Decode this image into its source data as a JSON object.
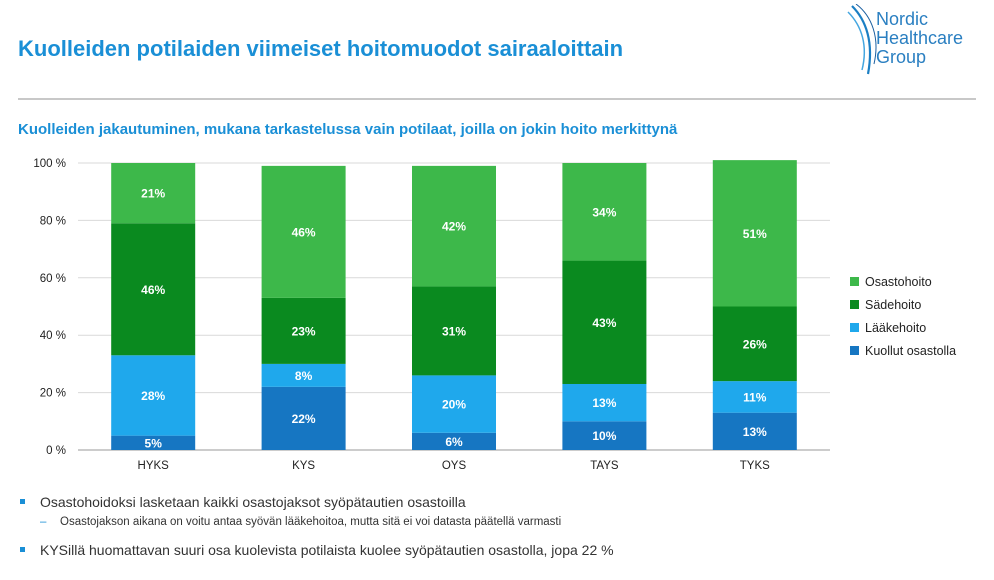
{
  "header": {
    "title": "Kuolleiden potilaiden viimeiset hoitomuodot sairaaloittain",
    "subtitle": "Kuolleiden jakautuminen, mukana tarkastelussa vain potilaat, joilla on jokin hoito merkittynä"
  },
  "logo": {
    "line1": "Nordic",
    "line2": "Healthcare",
    "line3": "Group",
    "color": "#2a7fc1"
  },
  "chart_data": {
    "type": "bar",
    "stacked": true,
    "categories": [
      "HYKS",
      "KYS",
      "OYS",
      "TAYS",
      "TYKS"
    ],
    "series": [
      {
        "name": "Kuollut osastolla",
        "values": [
          5,
          22,
          6,
          10,
          13
        ],
        "labels": [
          "5%",
          "22%",
          "6%",
          "10%",
          "13%"
        ],
        "color": "#1676c2"
      },
      {
        "name": "Lääkehoito",
        "values": [
          28,
          8,
          20,
          13,
          11
        ],
        "labels": [
          "28%",
          "8%",
          "20%",
          "13%",
          "11%"
        ],
        "color": "#1fa8ec"
      },
      {
        "name": "Sädehoito",
        "values": [
          46,
          23,
          31,
          43,
          26
        ],
        "labels": [
          "46%",
          "23%",
          "31%",
          "43%",
          "26%"
        ],
        "color": "#0a8a1f"
      },
      {
        "name": "Osastohoito",
        "values": [
          21,
          46,
          42,
          34,
          51
        ],
        "labels": [
          "21%",
          "46%",
          "42%",
          "34%",
          "51%"
        ],
        "color": "#3db84a"
      }
    ],
    "yticks": [
      "0 %",
      "20 %",
      "40 %",
      "60 %",
      "80 %",
      "100 %"
    ],
    "ylim": [
      0,
      100
    ],
    "grid": true,
    "legend_position": "right",
    "legend_order": [
      "Osastohoito",
      "Sädehoito",
      "Lääkehoito",
      "Kuollut osastolla"
    ]
  },
  "legend": {
    "items": [
      {
        "label": "Osastohoito",
        "color": "#3db84a"
      },
      {
        "label": "Sädehoito",
        "color": "#0a8a1f"
      },
      {
        "label": "Lääkehoito",
        "color": "#1fa8ec"
      },
      {
        "label": "Kuollut osastolla",
        "color": "#1676c2"
      }
    ]
  },
  "notes": {
    "bullet1": "Osastohoidoksi lasketaan kaikki osastojaksot syöpätautien osastoilla",
    "sub1": "Osastojakson aikana on voitu antaa syövän lääkehoitoa, mutta sitä ei voi datasta päätellä varmasti",
    "bullet2": "KYSillä huomattavan suuri osa kuolevista potilaista kuolee syöpätautien osastolla, jopa 22 %"
  }
}
